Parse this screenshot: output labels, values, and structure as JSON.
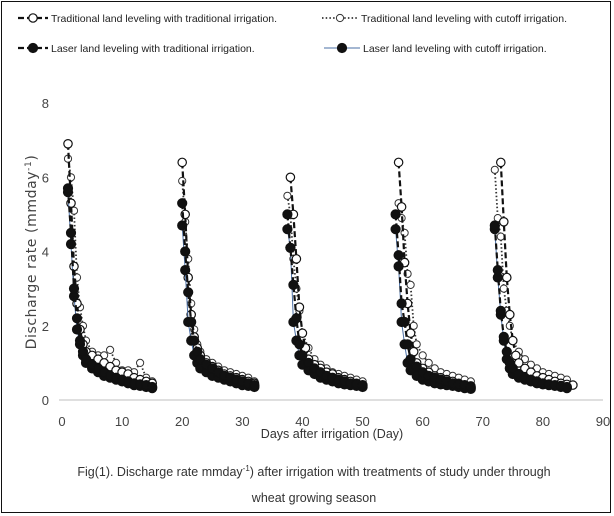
{
  "chart_data": {
    "type": "line",
    "title": "",
    "ylabel": "Discharge rate (mmday-1)",
    "ylabel_parts": {
      "main": "Discharge rate (mmday",
      "sup": "-1",
      "close": ")"
    },
    "xlabel": "Days after irrigation (Day)",
    "caption_line1": "Fig(1). Discharge rate mmday-1) after irrigation with treatments of study under  through",
    "caption_line1_parts": {
      "a": "Fig(1). Discharge rate mmday",
      "sup": "-1",
      "b": ") after irrigation with treatments of study under  through"
    },
    "caption_line2": "wheat growing season",
    "xlim": [
      0,
      90
    ],
    "ylim": [
      0,
      8
    ],
    "xticks": [
      0,
      10,
      20,
      30,
      40,
      50,
      60,
      70,
      80,
      90
    ],
    "yticks": [
      0,
      2,
      4,
      6,
      8
    ],
    "grid": false,
    "legend_position": "top",
    "series": [
      {
        "name": "Traditional land leveling with traditional irrigation.",
        "color": "#111111",
        "line": "dashed-heavy",
        "marker": "open-circle",
        "x": [
          1,
          1.5,
          2,
          2.5,
          3,
          3.5,
          4,
          5,
          6,
          7,
          8,
          9,
          10,
          11,
          12,
          13,
          14,
          15,
          20,
          20.5,
          21,
          21.5,
          22,
          22.5,
          23,
          24,
          25,
          26,
          27,
          28,
          29,
          30,
          31,
          32,
          38,
          38.5,
          39,
          39.5,
          40,
          40.5,
          41,
          42,
          43,
          44,
          45,
          46,
          47,
          48,
          49,
          50,
          56,
          56.5,
          57,
          57.5,
          58,
          58.5,
          59,
          60,
          61,
          62,
          63,
          64,
          65,
          66,
          67,
          68,
          73,
          73.5,
          74,
          74.5,
          75,
          75.5,
          76,
          77,
          78,
          79,
          80,
          81,
          82,
          83,
          84,
          85
        ],
        "y": [
          6.9,
          5.3,
          3.6,
          2.6,
          1.9,
          1.5,
          1.3,
          1.2,
          1.1,
          1.0,
          0.9,
          0.8,
          0.75,
          0.7,
          0.6,
          0.55,
          0.5,
          0.45,
          6.4,
          5.0,
          3.3,
          2.3,
          1.7,
          1.4,
          1.2,
          1.0,
          0.9,
          0.8,
          0.7,
          0.65,
          0.6,
          0.55,
          0.5,
          0.45,
          6.0,
          5.0,
          3.8,
          2.5,
          1.8,
          1.4,
          1.1,
          0.95,
          0.85,
          0.75,
          0.7,
          0.6,
          0.55,
          0.5,
          0.45,
          0.4,
          6.4,
          5.2,
          3.7,
          2.6,
          1.8,
          1.3,
          1.0,
          0.85,
          0.75,
          0.65,
          0.6,
          0.55,
          0.5,
          0.45,
          0.4,
          0.38,
          6.4,
          4.8,
          3.3,
          2.3,
          1.6,
          1.2,
          1.0,
          0.85,
          0.75,
          0.65,
          0.6,
          0.55,
          0.5,
          0.45,
          0.42,
          0.4
        ]
      },
      {
        "name": "Traditional land leveling with cutoff irrigation.",
        "color": "#333333",
        "line": "dotted",
        "marker": "open-circle-small",
        "x": [
          1,
          1.5,
          2,
          2.5,
          3,
          3.5,
          4,
          5,
          6,
          7,
          8,
          9,
          10,
          11,
          12,
          13,
          14,
          15,
          20,
          20.5,
          21,
          21.5,
          22,
          22.5,
          23,
          24,
          25,
          26,
          27,
          28,
          29,
          30,
          31,
          32,
          37.5,
          38,
          38.5,
          39,
          39.5,
          40,
          41,
          42,
          43,
          44,
          45,
          46,
          47,
          48,
          49,
          50,
          56,
          56.5,
          57,
          57.5,
          58,
          58.5,
          59,
          60,
          61,
          62,
          63,
          64,
          65,
          66,
          67,
          68,
          72,
          72.5,
          73,
          73.5,
          74,
          74.5,
          75,
          76,
          77,
          78,
          79,
          80,
          81,
          82,
          83,
          84
        ],
        "y": [
          6.5,
          6.0,
          5.1,
          3.3,
          2.5,
          2.0,
          1.6,
          1.3,
          1.2,
          1.2,
          1.35,
          1.0,
          0.8,
          0.8,
          0.75,
          1.0,
          0.6,
          0.5,
          5.9,
          4.8,
          3.8,
          2.6,
          1.9,
          1.5,
          1.3,
          1.1,
          1.0,
          0.9,
          0.8,
          0.75,
          0.7,
          0.65,
          0.6,
          0.5,
          5.5,
          5.0,
          3.8,
          3.0,
          2.4,
          1.8,
          1.4,
          1.1,
          0.95,
          0.85,
          0.75,
          0.7,
          0.65,
          0.6,
          0.55,
          0.5,
          5.3,
          4.9,
          4.5,
          3.4,
          3.1,
          2.0,
          1.5,
          1.2,
          1.0,
          0.85,
          0.75,
          0.7,
          0.65,
          0.6,
          0.55,
          0.5,
          6.2,
          4.9,
          4.4,
          3.0,
          2.4,
          2.0,
          1.6,
          1.3,
          1.1,
          0.95,
          0.85,
          0.75,
          0.7,
          0.65,
          0.6,
          0.55
        ]
      },
      {
        "name": "Laser land leveling with traditional irrigation.",
        "color": "#111111",
        "line": "dashed-heavy",
        "marker": "filled-circle",
        "x": [
          1,
          1.5,
          2,
          2.5,
          3,
          3.5,
          4,
          5,
          6,
          7,
          8,
          9,
          10,
          11,
          12,
          13,
          14,
          15,
          20,
          20.5,
          21,
          21.5,
          22,
          22.5,
          23,
          24,
          25,
          26,
          27,
          28,
          29,
          30,
          31,
          32,
          37.5,
          38,
          38.5,
          39,
          39.5,
          40,
          41,
          42,
          43,
          44,
          45,
          46,
          47,
          48,
          49,
          50,
          55.5,
          56,
          56.5,
          57,
          57.5,
          58,
          59,
          60,
          61,
          62,
          63,
          64,
          65,
          66,
          67,
          68,
          72,
          72.5,
          73,
          73.5,
          74,
          74.5,
          75,
          76,
          77,
          78,
          79,
          80,
          81,
          82,
          83,
          84
        ],
        "y": [
          5.7,
          4.5,
          3.0,
          2.2,
          1.6,
          1.3,
          1.1,
          0.95,
          0.85,
          0.75,
          0.65,
          0.6,
          0.55,
          0.5,
          0.45,
          0.42,
          0.4,
          0.35,
          5.3,
          4.0,
          2.9,
          2.1,
          1.6,
          1.3,
          1.1,
          0.95,
          0.85,
          0.75,
          0.65,
          0.6,
          0.55,
          0.5,
          0.45,
          0.4,
          5.0,
          4.1,
          3.1,
          2.2,
          1.5,
          1.2,
          1.0,
          0.85,
          0.75,
          0.65,
          0.6,
          0.55,
          0.5,
          0.45,
          0.42,
          0.4,
          5.0,
          3.9,
          2.6,
          2.1,
          1.5,
          1.1,
          0.9,
          0.75,
          0.65,
          0.6,
          0.55,
          0.5,
          0.45,
          0.42,
          0.4,
          0.35,
          4.7,
          3.5,
          2.4,
          1.7,
          1.3,
          1.0,
          0.85,
          0.7,
          0.6,
          0.55,
          0.5,
          0.45,
          0.42,
          0.4,
          0.38,
          0.35
        ]
      },
      {
        "name": "Laser land leveling with cutoff irrigation.",
        "color": "#111111",
        "line": "thin-solid",
        "line_color": "#4a6fa5",
        "marker": "filled-circle",
        "x": [
          1,
          1.5,
          2,
          2.5,
          3,
          3.5,
          4,
          5,
          6,
          7,
          8,
          9,
          10,
          11,
          12,
          13,
          14,
          15,
          20,
          20.5,
          21,
          21.5,
          22,
          22.5,
          23,
          24,
          25,
          26,
          27,
          28,
          29,
          30,
          31,
          32,
          37.5,
          38,
          38.5,
          39,
          39.5,
          40,
          41,
          42,
          43,
          44,
          45,
          46,
          47,
          48,
          49,
          50,
          55.5,
          56,
          56.5,
          57,
          57.5,
          58,
          59,
          60,
          61,
          62,
          63,
          64,
          65,
          66,
          67,
          68,
          72,
          72.5,
          73,
          73.5,
          74,
          74.5,
          75,
          76,
          77,
          78,
          79,
          80,
          81,
          82,
          83,
          84
        ],
        "y": [
          5.6,
          4.2,
          2.8,
          1.9,
          1.5,
          1.2,
          1.0,
          0.85,
          0.75,
          0.65,
          0.6,
          0.55,
          0.5,
          0.45,
          0.4,
          0.38,
          0.35,
          0.32,
          4.7,
          3.5,
          2.1,
          1.6,
          1.2,
          1.0,
          0.85,
          0.75,
          0.65,
          0.6,
          0.55,
          0.5,
          0.45,
          0.4,
          0.38,
          0.35,
          4.6,
          4.1,
          2.1,
          1.6,
          1.2,
          0.95,
          0.8,
          0.7,
          0.6,
          0.55,
          0.5,
          0.45,
          0.42,
          0.4,
          0.38,
          0.35,
          4.6,
          3.6,
          2.1,
          1.5,
          1.0,
          0.8,
          0.65,
          0.55,
          0.5,
          0.45,
          0.42,
          0.4,
          0.38,
          0.35,
          0.32,
          0.3,
          4.6,
          3.3,
          2.3,
          1.6,
          1.1,
          0.85,
          0.7,
          0.6,
          0.55,
          0.5,
          0.45,
          0.42,
          0.4,
          0.38,
          0.35,
          0.32
        ]
      }
    ]
  }
}
